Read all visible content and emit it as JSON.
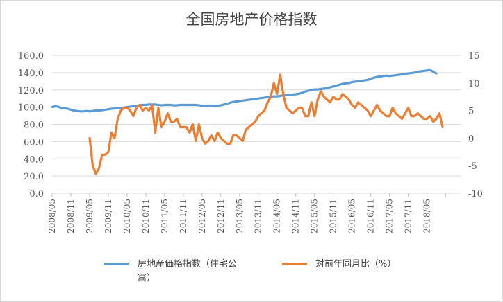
{
  "chart_data": {
    "type": "line",
    "title": "全国房地产价格指数",
    "x_ticks": [
      "2008/05",
      "2008/11",
      "2009/05",
      "2009/11",
      "2010/05",
      "2010/11",
      "2011/05",
      "2011/11",
      "2012/05",
      "2012/11",
      "2013/05",
      "2013/11",
      "2014/05",
      "2014/11",
      "2015/05",
      "2015/11",
      "2016/05",
      "2016/11",
      "2017/05",
      "2017/11",
      "2018/05"
    ],
    "y_left": {
      "ticks": [
        "0.0",
        "20.0",
        "40.0",
        "60.0",
        "80.0",
        "100.0",
        "120.0",
        "140.0",
        "160.0"
      ],
      "ylim": [
        0,
        160
      ]
    },
    "y_right": {
      "ticks": [
        "-10",
        "-5",
        "0",
        "5",
        "10",
        "15"
      ],
      "ylim": [
        -10,
        15
      ]
    },
    "grid": true,
    "legend_position": "bottom",
    "series": [
      {
        "name": "房地産価格指数（住宅公寓）",
        "axis": "left",
        "color": "#5b9bd5",
        "values": [
          100.0,
          101.0,
          100.5,
          98.5,
          99.0,
          98.0,
          97.0,
          96.0,
          95.5,
          95.0,
          95.0,
          95.5,
          95.0,
          95.5,
          96.0,
          96.0,
          96.5,
          97.0,
          97.5,
          98.0,
          98.5,
          99.0,
          99.0,
          99.5,
          100.0,
          100.5,
          101.0,
          101.5,
          102.0,
          102.5,
          102.5,
          103.0,
          103.0,
          103.0,
          102.5,
          102.0,
          102.5,
          102.5,
          102.5,
          102.0,
          102.0,
          102.5,
          102.5,
          102.5,
          102.5,
          102.5,
          102.5,
          102.0,
          101.5,
          101.0,
          101.5,
          101.5,
          101.0,
          101.5,
          102.0,
          103.0,
          104.0,
          105.0,
          106.0,
          106.5,
          107.0,
          107.5,
          108.0,
          108.5,
          109.0,
          109.5,
          110.0,
          110.5,
          111.0,
          111.5,
          112.0,
          112.5,
          112.5,
          113.0,
          113.5,
          114.0,
          114.0,
          114.5,
          115.0,
          115.5,
          116.5,
          118.0,
          119.0,
          120.0,
          120.5,
          120.5,
          121.0,
          121.5,
          122.0,
          123.0,
          124.0,
          125.0,
          126.0,
          127.0,
          127.5,
          128.0,
          129.0,
          129.5,
          130.0,
          130.5,
          131.0,
          131.5,
          133.0,
          134.0,
          135.0,
          135.5,
          136.0,
          136.5,
          136.0,
          136.5,
          137.0,
          137.5,
          138.0,
          138.5,
          139.0,
          139.5,
          140.0,
          141.0,
          141.5,
          142.0,
          142.5,
          143.0,
          141.0,
          139.0
        ]
      },
      {
        "name": "対前年同月比（%）",
        "axis": "right",
        "color": "#ed7d31",
        "start_month": "2009/05",
        "values": [
          0,
          -5.0,
          -6.5,
          -5.5,
          -3.0,
          -3.0,
          -2.5,
          1.0,
          0,
          3.5,
          5.0,
          5.5,
          5.5,
          5.0,
          4.0,
          5.5,
          6.0,
          5.0,
          5.5,
          5.0,
          6.0,
          1.0,
          5.5,
          2.0,
          3.0,
          4.5,
          3.0,
          3.0,
          3.5,
          2.0,
          2.0,
          2.0,
          1.0,
          2.5,
          -0.5,
          2.5,
          0,
          -1.0,
          -0.5,
          0.5,
          -0.5,
          1.0,
          0,
          -0.5,
          -1.0,
          -1.0,
          0.5,
          0.5,
          0,
          -0.5,
          1.5,
          2.0,
          2.5,
          3.0,
          4.0,
          4.5,
          5.0,
          6.5,
          7.5,
          10.0,
          8.0,
          11.5,
          8.0,
          5.5,
          5.0,
          4.5,
          5.0,
          5.5,
          5.5,
          4.0,
          4.0,
          6.5,
          4.0,
          7.0,
          8.5,
          7.5,
          7.0,
          6.5,
          7.5,
          7.0,
          7.0,
          8.0,
          7.5,
          7.0,
          6.0,
          5.5,
          6.5,
          6.0,
          5.5,
          5.0,
          4.0,
          5.0,
          6.0,
          5.0,
          4.5,
          4.0,
          4.0,
          5.5,
          4.5,
          4.0,
          3.5,
          4.5,
          5.5,
          4.0,
          4.0,
          4.5,
          4.0,
          3.5,
          3.5,
          4.0,
          3.0,
          3.5,
          4.5,
          2.0
        ]
      }
    ]
  }
}
